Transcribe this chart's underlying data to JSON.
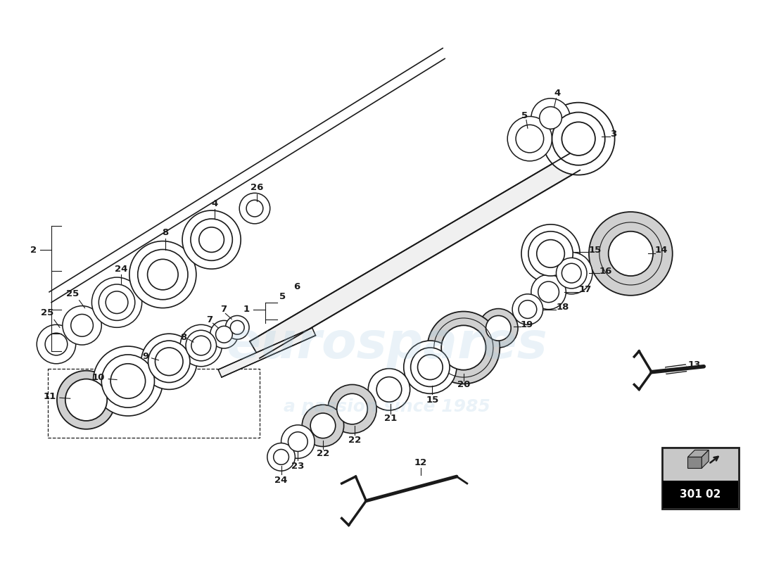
{
  "bg_color": "#ffffff",
  "line_color": "#1a1a1a",
  "part_number_label": "301 02",
  "watermark1": "eurospares",
  "watermark2": "a passion since 1985",
  "fig_width": 11.0,
  "fig_height": 8.0,
  "dpi": 100
}
